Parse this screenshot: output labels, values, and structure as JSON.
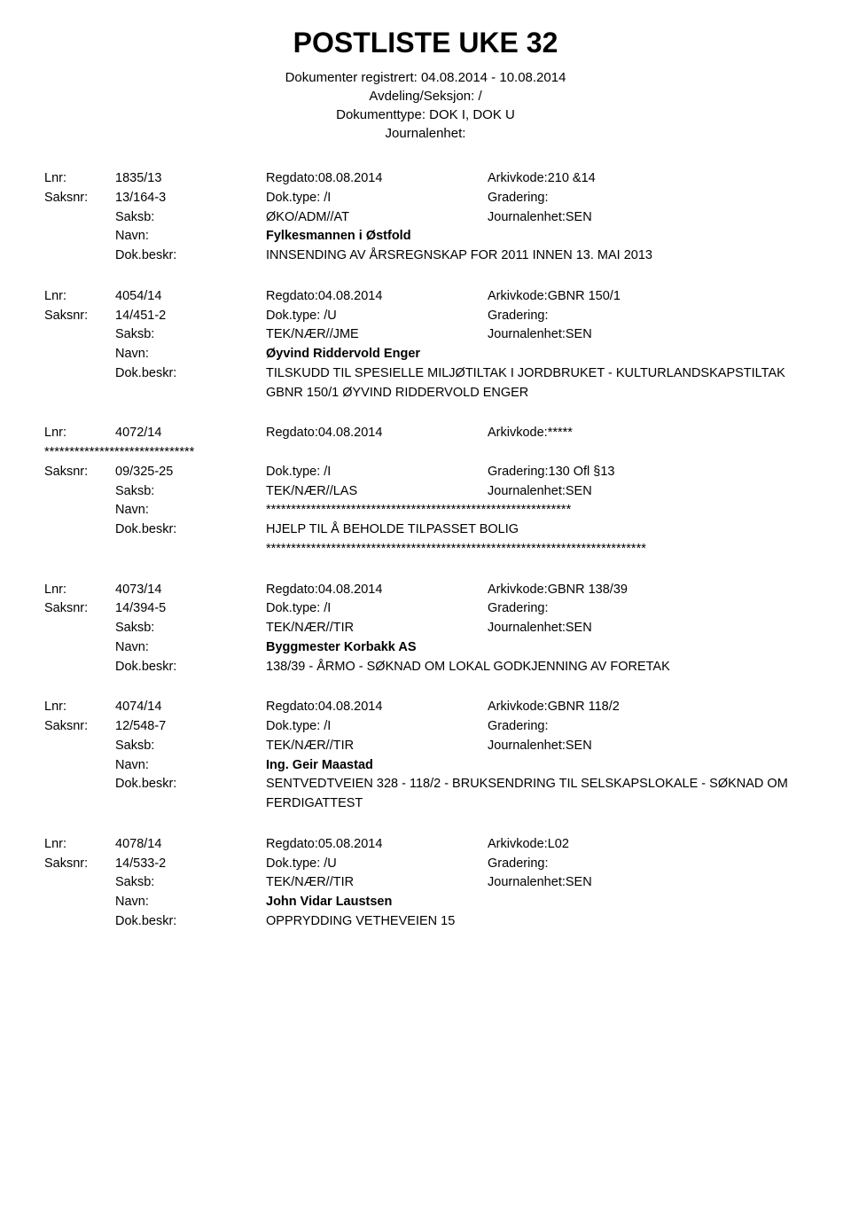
{
  "title": "POSTLISTE UKE 32",
  "header": {
    "line1": "Dokumenter registrert: 04.08.2014 - 10.08.2014",
    "line2": "Avdeling/Seksjon: /",
    "line3": "Dokumenttype: DOK I, DOK U",
    "line4": "Journalenhet:"
  },
  "labels": {
    "lnr": "Lnr:",
    "saksnr": "Saksnr:",
    "saksb": "Saksb:",
    "navn": "Navn:",
    "dokbeskr": "Dok.beskr:",
    "regdato": "Regdato:",
    "doktype": "Dok.type:",
    "arkivkode": "Arkivkode:",
    "gradering": "Gradering:",
    "journalenhet": "Journalenhet:"
  },
  "entries": [
    {
      "lnr": "1835/13",
      "regdato": "08.08.2014",
      "arkivkode": "210 &14",
      "saksnr": "13/164-3",
      "doktype": "/I",
      "gradering": "",
      "saksb": "ØKO/ADM//AT",
      "journalenhet": "SEN",
      "navn": "Fylkesmannen i Østfold",
      "dokbeskr": "INNSENDING AV ÅRSREGNSKAP FOR 2011 INNEN 13. MAI 2013",
      "asterisk_before": false,
      "asterisk_navn": false,
      "asterisk_after": false
    },
    {
      "lnr": "4054/14",
      "regdato": "04.08.2014",
      "arkivkode": "GBNR 150/1",
      "saksnr": "14/451-2",
      "doktype": "/U",
      "gradering": "",
      "saksb": "TEK/NÆR//JME",
      "journalenhet": "SEN",
      "navn": "Øyvind Riddervold Enger",
      "dokbeskr": "TILSKUDD TIL SPESIELLE MILJØTILTAK I JORDBRUKET - KULTURLANDSKAPSTILTAK GBNR 150/1 ØYVIND RIDDERVOLD ENGER",
      "asterisk_before": false,
      "asterisk_navn": false,
      "asterisk_after": false
    },
    {
      "lnr": "4072/14",
      "regdato": "04.08.2014",
      "arkivkode": "*****",
      "saksnr": "09/325-25",
      "doktype": "/I",
      "gradering": "130 Ofl §13",
      "saksb": "TEK/NÆR//LAS",
      "journalenhet": "SEN",
      "navn": "*************************************************************",
      "dokbeskr": "HJELP TIL Å BEHOLDE TILPASSET BOLIG",
      "asterisk_before": true,
      "asterisk_before_text": "******************************",
      "asterisk_navn": true,
      "asterisk_after": true,
      "asterisk_after_text": "****************************************************************************"
    },
    {
      "lnr": "4073/14",
      "regdato": "04.08.2014",
      "arkivkode": "GBNR 138/39",
      "saksnr": "14/394-5",
      "doktype": "/I",
      "gradering": "",
      "saksb": "TEK/NÆR//TIR",
      "journalenhet": "SEN",
      "navn": "Byggmester Korbakk AS",
      "dokbeskr": "138/39 - ÅRMO - SØKNAD OM LOKAL GODKJENNING AV FORETAK",
      "asterisk_before": false,
      "asterisk_navn": false,
      "asterisk_after": false
    },
    {
      "lnr": "4074/14",
      "regdato": "04.08.2014",
      "arkivkode": "GBNR 118/2",
      "saksnr": "12/548-7",
      "doktype": "/I",
      "gradering": "",
      "saksb": "TEK/NÆR//TIR",
      "journalenhet": "SEN",
      "navn": "Ing. Geir Maastad",
      "dokbeskr": "SENTVEDTVEIEN 328 - 118/2 - BRUKSENDRING TIL SELSKAPSLOKALE - SØKNAD OM FERDIGATTEST",
      "asterisk_before": false,
      "asterisk_navn": false,
      "asterisk_after": false
    },
    {
      "lnr": "4078/14",
      "regdato": "05.08.2014",
      "arkivkode": "L02",
      "saksnr": "14/533-2",
      "doktype": "/U",
      "gradering": "",
      "saksb": "TEK/NÆR//TIR",
      "journalenhet": "SEN",
      "navn": "John Vidar Laustsen",
      "dokbeskr": "OPPRYDDING VETHEVEIEN 15",
      "asterisk_before": false,
      "asterisk_navn": false,
      "asterisk_after": false
    }
  ],
  "styling": {
    "background_color": "#ffffff",
    "text_color": "#000000",
    "title_fontsize": 32,
    "body_fontsize": 14.5,
    "header_fontsize": 15
  }
}
